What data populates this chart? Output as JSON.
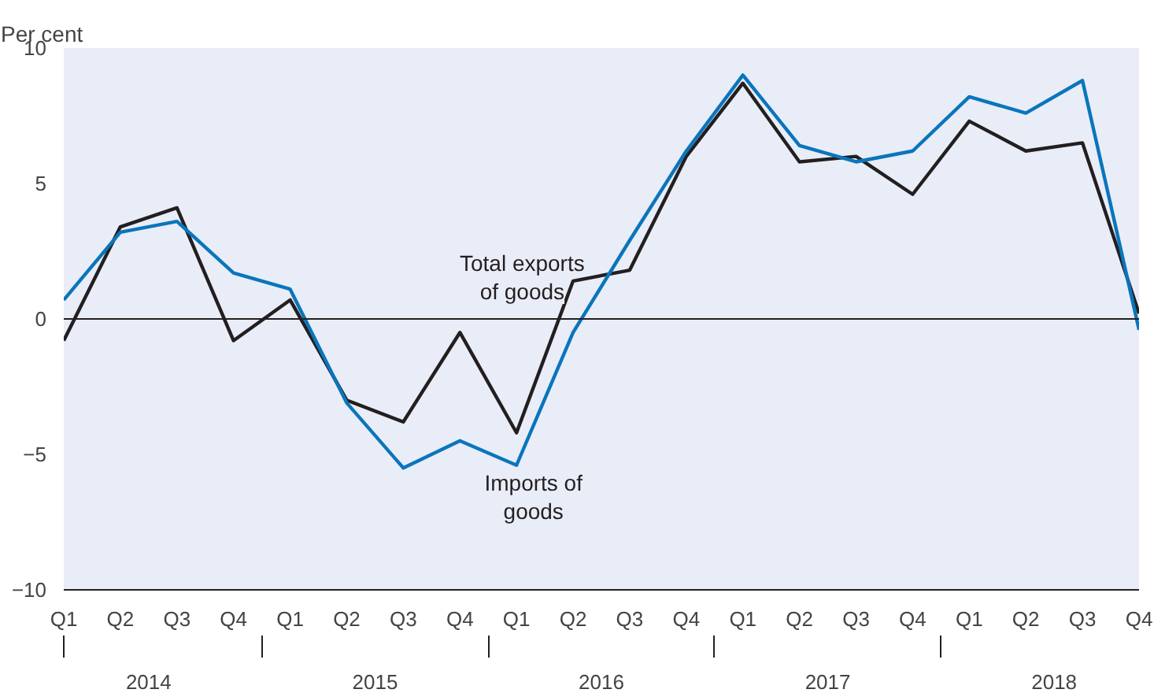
{
  "chart_data": {
    "type": "line",
    "ylabel": "Per cent",
    "categories": [
      "Q1",
      "Q2",
      "Q3",
      "Q4",
      "Q1",
      "Q2",
      "Q3",
      "Q4",
      "Q1",
      "Q2",
      "Q3",
      "Q4",
      "Q1",
      "Q2",
      "Q3",
      "Q4",
      "Q1",
      "Q2",
      "Q3",
      "Q4"
    ],
    "series": [
      {
        "name": "Total exports of goods",
        "color": "#231f20",
        "values": [
          -0.8,
          3.4,
          4.1,
          -0.8,
          0.7,
          -3.0,
          -3.8,
          -0.5,
          -4.2,
          1.4,
          1.8,
          6.0,
          8.7,
          5.8,
          6.0,
          4.6,
          7.3,
          6.2,
          6.5,
          0.2
        ]
      },
      {
        "name": "Imports of goods",
        "color": "#0a75bc",
        "values": [
          0.7,
          3.2,
          3.6,
          1.7,
          1.1,
          -3.1,
          -5.5,
          -4.5,
          -5.4,
          -0.5,
          2.9,
          6.2,
          9.0,
          6.4,
          5.8,
          6.2,
          8.2,
          7.6,
          8.8,
          -0.4
        ]
      }
    ],
    "ylim": [
      -10,
      10
    ],
    "yticks": [
      -10,
      -5,
      0,
      5,
      10
    ],
    "grid": false,
    "ref_lines": [
      {
        "axis": "y",
        "value": 0,
        "color": "#231f20"
      }
    ],
    "annotations": [
      "2014",
      "2015",
      "2016",
      "2017",
      "2018"
    ]
  }
}
